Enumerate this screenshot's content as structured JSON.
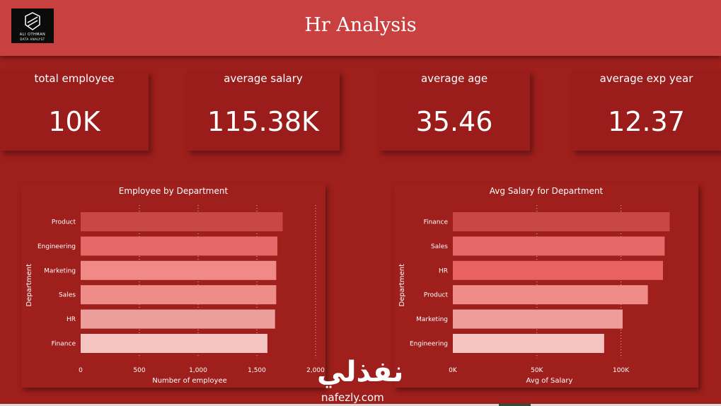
{
  "header": {
    "title": "Hr Analysis",
    "logo": {
      "line1": "ALI OTHMAN",
      "line2": "DATA ANALYST"
    }
  },
  "kpis": [
    {
      "label": "total employee",
      "value": "10K"
    },
    {
      "label": "average salary",
      "value": "115.38K"
    },
    {
      "label": "average age",
      "value": "35.46"
    },
    {
      "label": "average exp year",
      "value": "12.37"
    }
  ],
  "chart_data": [
    {
      "type": "bar",
      "orientation": "horizontal",
      "title": "Employee by Department",
      "xlabel": "Number of employee",
      "ylabel": "Department",
      "categories": [
        "Product",
        "Engineering",
        "Marketing",
        "Sales",
        "HR",
        "Finance"
      ],
      "values": [
        1720,
        1675,
        1665,
        1665,
        1655,
        1590
      ],
      "xlim": [
        0,
        2000
      ],
      "xticks": [
        "0",
        "500",
        "1,000",
        "1,500",
        "2,000"
      ],
      "grid": true,
      "colors": [
        "#c94747",
        "#e56767",
        "#f08a86",
        "#ee8c88",
        "#ec9e9b",
        "#f5c3c1"
      ]
    },
    {
      "type": "bar",
      "orientation": "horizontal",
      "title": "Avg Salary for Department",
      "xlabel": "Avg of Salary",
      "ylabel": "Department",
      "categories": [
        "Finance",
        "Sales",
        "HR",
        "Product",
        "Marketing",
        "Engineering"
      ],
      "values": [
        129000,
        126000,
        125000,
        116000,
        101000,
        90000
      ],
      "xlim": [
        0,
        125000
      ],
      "xticks": [
        "0K",
        "50K",
        "100K"
      ],
      "xtick_values": [
        0,
        50000,
        100000
      ],
      "grid": true,
      "colors": [
        "#c94747",
        "#e56767",
        "#e86262",
        "#ef8c88",
        "#ef9d9a",
        "#f5c3c1"
      ]
    }
  ],
  "watermark": {
    "arabic": "نفذلي",
    "latin": "nafezly.com"
  }
}
